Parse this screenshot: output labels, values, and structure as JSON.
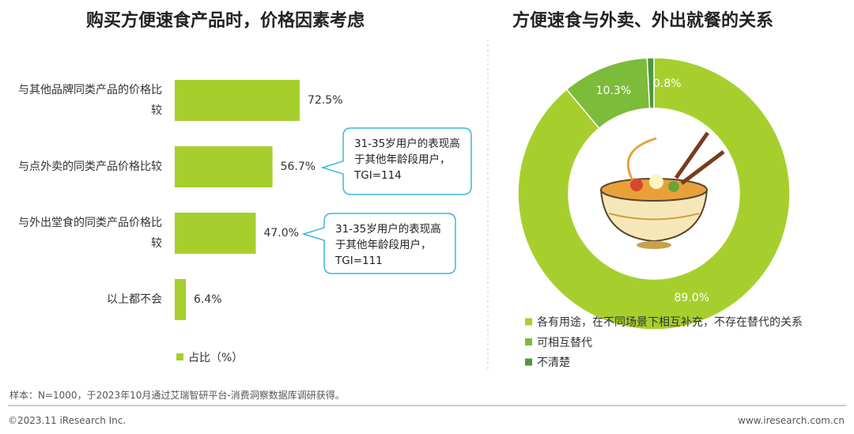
{
  "chart_data": [
    {
      "type": "bar",
      "title": "购买方便速食产品时，价格因素考虑",
      "categories": [
        "与其他品牌同类产品的价格比较",
        "与点外卖的同类产品价格比较",
        "与外出堂食的同类产品价格比较",
        "以上都不会"
      ],
      "series": [
        {
          "name": "占比（%）",
          "color": "#a6cf2e",
          "values": [
            72.5,
            56.7,
            47.0,
            6.4
          ],
          "value_labels": [
            "72.5%",
            "56.7%",
            "47.0%",
            "6.4%"
          ]
        }
      ],
      "xlim": [
        0,
        100
      ],
      "annotations": [
        "31-35岁用户的表现高于其他年龄段用户，TGI=114",
        "31-35岁用户的表现高于其他年龄段用户，TGI=111"
      ]
    },
    {
      "type": "donut",
      "title": "方便速食与外卖、外出就餐的关系",
      "categories": [
        "各有用途，在不同场景下相互补充，不存在替代的关系",
        "可相互替代",
        "不清楚"
      ],
      "values": [
        89.0,
        10.3,
        0.8
      ],
      "value_labels": [
        "89.0%",
        "10.3%",
        "0.8%"
      ],
      "colors": [
        "#a6cf2e",
        "#7dbb3a",
        "#4c9a3a"
      ]
    }
  ],
  "note": "样本：N=1000，于2023年10月通过艾瑞智研平台-消费洞察数据库调研获得。",
  "copyright": "©2023.11 iResearch Inc.",
  "website": "www.iresearch.com.cn"
}
